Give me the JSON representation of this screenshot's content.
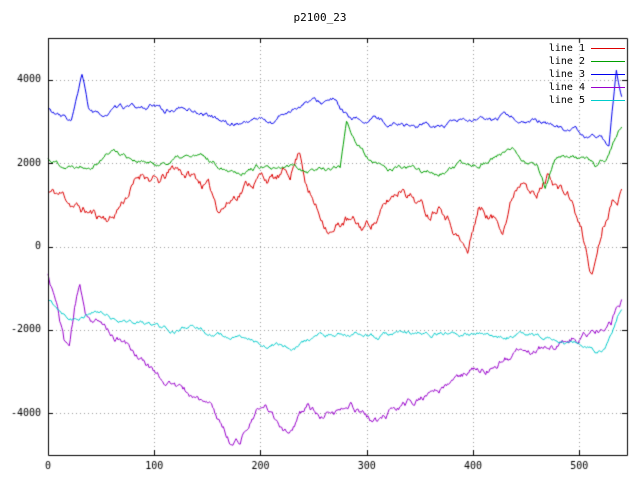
{
  "title": "p2100_23",
  "chart_data": {
    "type": "line",
    "title": "p2100_23",
    "xlabel": "",
    "ylabel": "",
    "xlim": [
      0,
      545
    ],
    "ylim": [
      -5000,
      5000
    ],
    "xticks": [
      0,
      100,
      200,
      300,
      400,
      500
    ],
    "yticks": [
      -4000,
      -2000,
      0,
      2000,
      4000
    ],
    "grid": true,
    "grid_style": "dotted",
    "legend_position": "top-right",
    "background_color": "#ffffff",
    "border_color": "#000000",
    "series": [
      {
        "name": "line 1",
        "color": "#dd0000",
        "noise": 360,
        "seed": 11,
        "keypoints": [
          [
            0,
            1300
          ],
          [
            15,
            1200
          ],
          [
            30,
            900
          ],
          [
            45,
            750
          ],
          [
            60,
            700
          ],
          [
            75,
            1300
          ],
          [
            90,
            1800
          ],
          [
            105,
            1500
          ],
          [
            120,
            1850
          ],
          [
            135,
            1700
          ],
          [
            150,
            1450
          ],
          [
            160,
            950
          ],
          [
            170,
            1100
          ],
          [
            185,
            1500
          ],
          [
            200,
            1700
          ],
          [
            215,
            1600
          ],
          [
            228,
            1750
          ],
          [
            237,
            2350
          ],
          [
            245,
            1400
          ],
          [
            255,
            800
          ],
          [
            268,
            400
          ],
          [
            280,
            650
          ],
          [
            295,
            400
          ],
          [
            310,
            700
          ],
          [
            322,
            1100
          ],
          [
            335,
            1500
          ],
          [
            348,
            1150
          ],
          [
            358,
            800
          ],
          [
            370,
            1200
          ],
          [
            382,
            600
          ],
          [
            395,
            -150
          ],
          [
            405,
            950
          ],
          [
            418,
            700
          ],
          [
            428,
            550
          ],
          [
            440,
            1450
          ],
          [
            450,
            1850
          ],
          [
            460,
            1250
          ],
          [
            472,
            1800
          ],
          [
            482,
            1400
          ],
          [
            492,
            1150
          ],
          [
            502,
            350
          ],
          [
            512,
            -700
          ],
          [
            522,
            500
          ],
          [
            532,
            1300
          ],
          [
            540,
            1450
          ]
        ]
      },
      {
        "name": "line 2",
        "color": "#00a000",
        "noise": 180,
        "seed": 22,
        "keypoints": [
          [
            0,
            2100
          ],
          [
            20,
            1950
          ],
          [
            40,
            2050
          ],
          [
            60,
            2350
          ],
          [
            80,
            2150
          ],
          [
            100,
            1950
          ],
          [
            120,
            2100
          ],
          [
            140,
            2150
          ],
          [
            160,
            1950
          ],
          [
            180,
            1850
          ],
          [
            200,
            1950
          ],
          [
            215,
            1750
          ],
          [
            230,
            1900
          ],
          [
            245,
            1850
          ],
          [
            260,
            1900
          ],
          [
            275,
            1880
          ],
          [
            281,
            3050
          ],
          [
            288,
            2650
          ],
          [
            297,
            2250
          ],
          [
            307,
            1950
          ],
          [
            320,
            1820
          ],
          [
            335,
            1880
          ],
          [
            350,
            1800
          ],
          [
            365,
            1760
          ],
          [
            380,
            1850
          ],
          [
            395,
            1920
          ],
          [
            410,
            2050
          ],
          [
            425,
            2200
          ],
          [
            438,
            2280
          ],
          [
            450,
            2120
          ],
          [
            460,
            2000
          ],
          [
            468,
            1480
          ],
          [
            477,
            2050
          ],
          [
            490,
            2180
          ],
          [
            503,
            2050
          ],
          [
            515,
            1920
          ],
          [
            525,
            2080
          ],
          [
            533,
            2550
          ],
          [
            540,
            2880
          ]
        ]
      },
      {
        "name": "line 3",
        "color": "#0000ee",
        "noise": 180,
        "seed": 33,
        "keypoints": [
          [
            0,
            3300
          ],
          [
            12,
            3080
          ],
          [
            22,
            3020
          ],
          [
            28,
            3620
          ],
          [
            32,
            4050
          ],
          [
            38,
            3280
          ],
          [
            48,
            3080
          ],
          [
            60,
            3220
          ],
          [
            72,
            3300
          ],
          [
            85,
            3280
          ],
          [
            98,
            3340
          ],
          [
            110,
            3230
          ],
          [
            122,
            3300
          ],
          [
            135,
            3280
          ],
          [
            148,
            3180
          ],
          [
            160,
            3080
          ],
          [
            172,
            2920
          ],
          [
            185,
            3000
          ],
          [
            198,
            3080
          ],
          [
            210,
            2960
          ],
          [
            222,
            3180
          ],
          [
            234,
            3380
          ],
          [
            246,
            3480
          ],
          [
            258,
            3440
          ],
          [
            268,
            3500
          ],
          [
            276,
            3250
          ],
          [
            286,
            2950
          ],
          [
            298,
            3000
          ],
          [
            310,
            3050
          ],
          [
            322,
            2950
          ],
          [
            334,
            2990
          ],
          [
            346,
            2900
          ],
          [
            358,
            2940
          ],
          [
            370,
            2860
          ],
          [
            382,
            2900
          ],
          [
            394,
            2960
          ],
          [
            406,
            2990
          ],
          [
            418,
            2960
          ],
          [
            430,
            3090
          ],
          [
            442,
            3040
          ],
          [
            454,
            2950
          ],
          [
            466,
            2980
          ],
          [
            478,
            2870
          ],
          [
            490,
            2800
          ],
          [
            500,
            2720
          ],
          [
            510,
            2520
          ],
          [
            520,
            2600
          ],
          [
            528,
            2470
          ],
          [
            535,
            4150
          ],
          [
            540,
            3550
          ]
        ]
      },
      {
        "name": "line 4",
        "color": "#9900cc",
        "noise": 260,
        "seed": 44,
        "keypoints": [
          [
            0,
            -700
          ],
          [
            8,
            -1350
          ],
          [
            15,
            -2250
          ],
          [
            20,
            -2400
          ],
          [
            25,
            -1500
          ],
          [
            30,
            -950
          ],
          [
            36,
            -1600
          ],
          [
            46,
            -1800
          ],
          [
            58,
            -2050
          ],
          [
            70,
            -2300
          ],
          [
            82,
            -2550
          ],
          [
            94,
            -2850
          ],
          [
            106,
            -3100
          ],
          [
            118,
            -3300
          ],
          [
            130,
            -3520
          ],
          [
            142,
            -3650
          ],
          [
            152,
            -3850
          ],
          [
            162,
            -4250
          ],
          [
            172,
            -4680
          ],
          [
            180,
            -4620
          ],
          [
            188,
            -4280
          ],
          [
            196,
            -3980
          ],
          [
            205,
            -3900
          ],
          [
            213,
            -4120
          ],
          [
            221,
            -4320
          ],
          [
            228,
            -4380
          ],
          [
            236,
            -4080
          ],
          [
            244,
            -3820
          ],
          [
            252,
            -4020
          ],
          [
            260,
            -4180
          ],
          [
            268,
            -4080
          ],
          [
            276,
            -3980
          ],
          [
            285,
            -3880
          ],
          [
            294,
            -3940
          ],
          [
            303,
            -4120
          ],
          [
            311,
            -4180
          ],
          [
            320,
            -4060
          ],
          [
            330,
            -3920
          ],
          [
            340,
            -3800
          ],
          [
            352,
            -3620
          ],
          [
            364,
            -3480
          ],
          [
            376,
            -3360
          ],
          [
            388,
            -3140
          ],
          [
            400,
            -3000
          ],
          [
            412,
            -2900
          ],
          [
            424,
            -2780
          ],
          [
            436,
            -2640
          ],
          [
            448,
            -2520
          ],
          [
            460,
            -2420
          ],
          [
            472,
            -2340
          ],
          [
            484,
            -2280
          ],
          [
            496,
            -2150
          ],
          [
            508,
            -2060
          ],
          [
            520,
            -2000
          ],
          [
            530,
            -1880
          ],
          [
            536,
            -1420
          ],
          [
            540,
            -1300
          ]
        ]
      },
      {
        "name": "line 5",
        "color": "#00cccc",
        "noise": 160,
        "seed": 55,
        "keypoints": [
          [
            0,
            -1300
          ],
          [
            12,
            -1520
          ],
          [
            24,
            -1680
          ],
          [
            36,
            -1580
          ],
          [
            48,
            -1600
          ],
          [
            60,
            -1700
          ],
          [
            72,
            -1760
          ],
          [
            84,
            -1820
          ],
          [
            96,
            -1880
          ],
          [
            108,
            -1940
          ],
          [
            120,
            -1990
          ],
          [
            132,
            -1950
          ],
          [
            144,
            -2010
          ],
          [
            156,
            -2120
          ],
          [
            168,
            -2190
          ],
          [
            180,
            -2240
          ],
          [
            192,
            -2200
          ],
          [
            204,
            -2290
          ],
          [
            216,
            -2330
          ],
          [
            228,
            -2480
          ],
          [
            238,
            -2320
          ],
          [
            250,
            -2200
          ],
          [
            262,
            -2120
          ],
          [
            274,
            -2140
          ],
          [
            286,
            -2080
          ],
          [
            298,
            -2100
          ],
          [
            310,
            -2150
          ],
          [
            322,
            -2090
          ],
          [
            334,
            -2060
          ],
          [
            346,
            -2090
          ],
          [
            358,
            -2020
          ],
          [
            370,
            -2090
          ],
          [
            382,
            -2050
          ],
          [
            394,
            -2100
          ],
          [
            406,
            -2130
          ],
          [
            418,
            -2180
          ],
          [
            430,
            -2140
          ],
          [
            442,
            -2110
          ],
          [
            454,
            -2150
          ],
          [
            466,
            -2190
          ],
          [
            478,
            -2200
          ],
          [
            490,
            -2260
          ],
          [
            502,
            -2310
          ],
          [
            512,
            -2420
          ],
          [
            517,
            -2580
          ],
          [
            524,
            -2480
          ],
          [
            531,
            -2180
          ],
          [
            536,
            -1720
          ],
          [
            540,
            -1620
          ]
        ]
      }
    ]
  }
}
